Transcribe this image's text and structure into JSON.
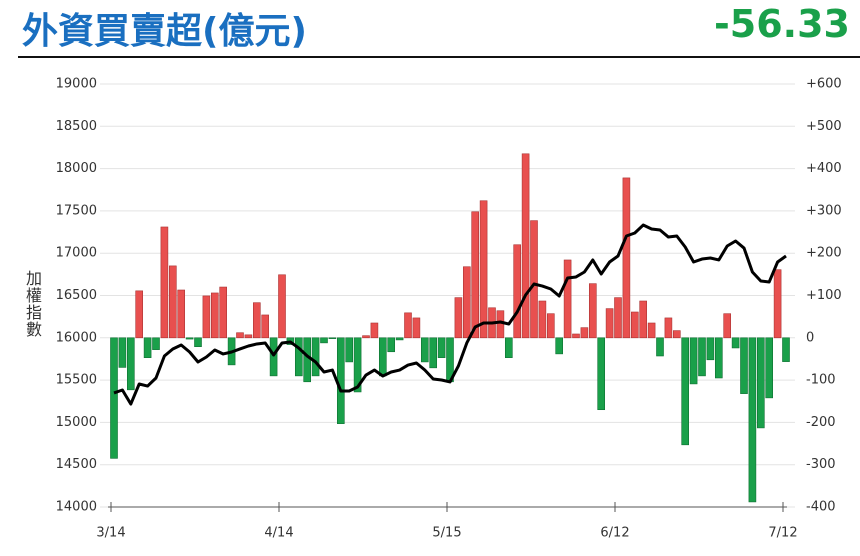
{
  "chart_data": {
    "type": "bar-line",
    "title": "外資買賣超(億元)",
    "annotation": "-56.33",
    "y_label": "加權指數",
    "categories": [
      "3/14",
      null,
      null,
      null,
      null,
      null,
      null,
      null,
      null,
      null,
      null,
      null,
      null,
      null,
      null,
      null,
      null,
      null,
      null,
      null,
      "4/14",
      null,
      null,
      null,
      null,
      null,
      null,
      null,
      null,
      null,
      null,
      null,
      null,
      null,
      null,
      null,
      null,
      null,
      null,
      null,
      "5/15",
      null,
      null,
      null,
      null,
      null,
      null,
      null,
      null,
      null,
      null,
      null,
      null,
      null,
      null,
      null,
      null,
      null,
      null,
      null,
      "6/12",
      null,
      null,
      null,
      null,
      null,
      null,
      null,
      null,
      null,
      null,
      null,
      null,
      null,
      null,
      null,
      null,
      null,
      null,
      null,
      "7/12"
    ],
    "ylim": [
      14000,
      19000
    ],
    "yticks": [
      14000,
      14500,
      15000,
      15500,
      16000,
      16500,
      17000,
      17500,
      18000,
      18500,
      19000
    ],
    "y2lim": [
      -400,
      600
    ],
    "y2ticks": [
      -400,
      -300,
      -200,
      -100,
      0,
      {
        "value": 100,
        "label": "+100"
      },
      {
        "value": 200,
        "label": "+200"
      },
      {
        "value": 300,
        "label": "+300"
      },
      {
        "value": 400,
        "label": "+400"
      },
      {
        "value": 500,
        "label": "+500"
      },
      {
        "value": 600,
        "label": "+600"
      }
    ],
    "grid": true,
    "series": [
      {
        "type": "bar",
        "axis": "y2",
        "color": "#e8504f",
        "negative_color": "#1aa04a",
        "values": [
          -285,
          -70,
          -123,
          111,
          -47,
          -28,
          262,
          170,
          113,
          -3,
          -21,
          99,
          106,
          120,
          -64,
          12,
          7,
          83,
          54,
          -90,
          149,
          -16,
          -90,
          -104,
          -90,
          -12,
          -2,
          -203,
          -57,
          -128,
          5,
          35,
          -90,
          -33,
          -5,
          59,
          47,
          -57,
          -71,
          -47,
          -104,
          95,
          168,
          298,
          324,
          71,
          64,
          -47,
          220,
          435,
          277,
          87,
          57,
          -38,
          184,
          9,
          24,
          128,
          -170,
          69,
          95,
          378,
          61,
          87,
          35,
          -43,
          47,
          17,
          -253,
          -109,
          -90,
          -52,
          -95,
          57,
          -24,
          -132,
          -388,
          -213,
          -142,
          161,
          -56.33
        ]
      },
      {
        "type": "line",
        "color": "#000000",
        "values": [
          15348,
          15383,
          15217,
          15454,
          15430,
          15525,
          15785,
          15868,
          15915,
          15832,
          15714,
          15773,
          15856,
          15809,
          15832,
          15868,
          15903,
          15927,
          15939,
          15797,
          15939,
          15950,
          15879,
          15785,
          15714,
          15596,
          15619,
          15371,
          15371,
          15418,
          15560,
          15619,
          15548,
          15596,
          15619,
          15678,
          15702,
          15619,
          15513,
          15501,
          15478,
          15667,
          15939,
          16128,
          16175,
          16175,
          16187,
          16163,
          16305,
          16506,
          16636,
          16612,
          16577,
          16494,
          16707,
          16719,
          16778,
          16920,
          16754,
          16896,
          16967,
          17203,
          17239,
          17333,
          17286,
          17274,
          17191,
          17203,
          17073,
          16896,
          16931,
          16943,
          16920,
          17085,
          17144,
          17061,
          16778,
          16671,
          16660,
          16896,
          16967
        ]
      }
    ]
  }
}
